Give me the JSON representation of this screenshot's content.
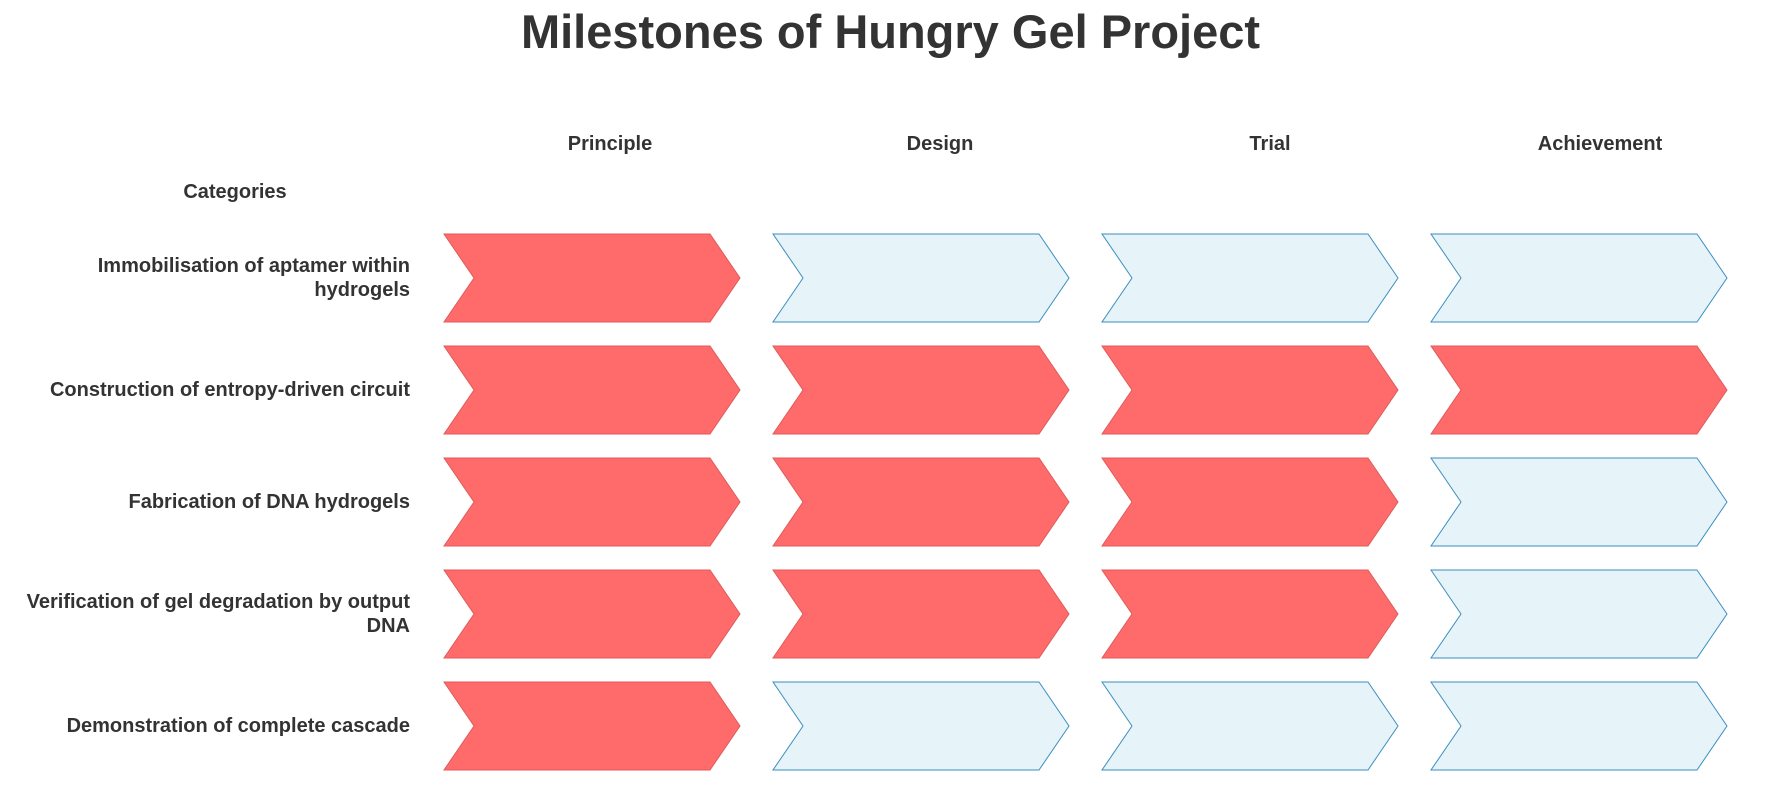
{
  "title": "Milestones of Hungry Gel Project",
  "categories_label": "Categories",
  "stages": [
    "Principle",
    "Design",
    "Trial",
    "Achievement"
  ],
  "rows": [
    {
      "label": "Immobilisation of aptamer within hydrogels",
      "completed": [
        true,
        false,
        false,
        false
      ]
    },
    {
      "label": "Construction of entropy-driven circuit",
      "completed": [
        true,
        true,
        true,
        true
      ]
    },
    {
      "label": "Fabrication of DNA hydrogels",
      "completed": [
        true,
        true,
        true,
        false
      ]
    },
    {
      "label": "Verification of gel degradation by output DNA",
      "completed": [
        true,
        true,
        true,
        false
      ]
    },
    {
      "label": "Demonstration of complete cascade",
      "completed": [
        true,
        false,
        false,
        false
      ]
    }
  ],
  "colors": {
    "completed_fill": "#ff6b6b",
    "completed_stroke": "#e05a5a",
    "pending_fill": "#e6f3f8",
    "pending_stroke": "#3a8fbf",
    "text": "#333333"
  }
}
